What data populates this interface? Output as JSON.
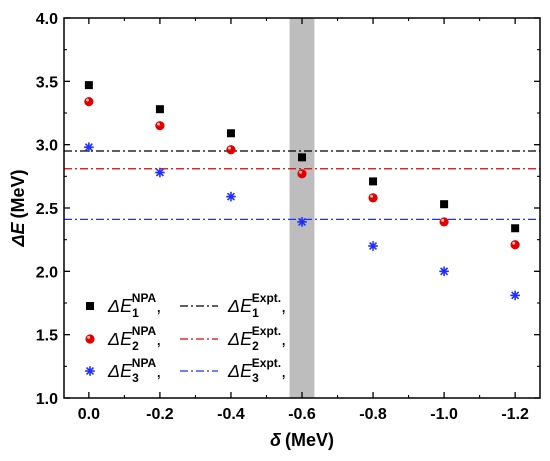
{
  "chart_data": {
    "type": "scatter",
    "xlabel": {
      "symbol": "δ",
      "unit": "(MeV)"
    },
    "ylabel": {
      "symbol": "ΔE",
      "unit": "(MeV)"
    },
    "xlim": [
      0.07,
      -1.27
    ],
    "ylim": [
      1.0,
      4.0
    ],
    "x_ticks": [
      0.0,
      -0.2,
      -0.4,
      -0.6,
      -0.8,
      -1.0,
      -1.2
    ],
    "x_tick_labels": [
      "0.0",
      "-0.2",
      "-0.4",
      "-0.6",
      "-0.8",
      "-1.0",
      "-1.2"
    ],
    "y_ticks": [
      1.0,
      1.5,
      2.0,
      2.5,
      3.0,
      3.5,
      4.0
    ],
    "y_tick_labels": [
      "1.0",
      "1.5",
      "2.0",
      "2.5",
      "3.0",
      "3.5",
      "4.0"
    ],
    "shaded_band": {
      "x_from": -0.565,
      "x_to": -0.635,
      "color": "#bdbdbd"
    },
    "series": [
      {
        "marker": "square",
        "color": "#000000",
        "legend": {
          "prefix": "ΔE",
          "sub": "1",
          "sup": "NPA"
        },
        "x": [
          0.0,
          -0.2,
          -0.4,
          -0.6,
          -0.8,
          -1.0,
          -1.2
        ],
        "y": [
          3.47,
          3.28,
          3.09,
          2.9,
          2.71,
          2.53,
          2.34
        ]
      },
      {
        "marker": "sphere",
        "color": "#e00000",
        "legend": {
          "prefix": "ΔE",
          "sub": "2",
          "sup": "NPA"
        },
        "x": [
          0.0,
          -0.2,
          -0.4,
          -0.6,
          -0.8,
          -1.0,
          -1.2
        ],
        "y": [
          3.34,
          3.15,
          2.96,
          2.77,
          2.58,
          2.39,
          2.21
        ]
      },
      {
        "marker": "asterisk",
        "color": "#1f2fff",
        "legend": {
          "prefix": "ΔE",
          "sub": "3",
          "sup": "NPA"
        },
        "x": [
          0.0,
          -0.2,
          -0.4,
          -0.6,
          -0.8,
          -1.0,
          -1.2
        ],
        "y": [
          2.98,
          2.78,
          2.59,
          2.39,
          2.2,
          2.0,
          1.81
        ]
      }
    ],
    "reference_lines": [
      {
        "y": 2.95,
        "color": "#000000",
        "dash": "8 3 2 3",
        "legend": {
          "prefix": "ΔE",
          "sub": "1",
          "sup": "Expt."
        }
      },
      {
        "y": 2.81,
        "color": "#e00000",
        "dash": "8 3 2 3",
        "legend": {
          "prefix": "ΔE",
          "sub": "2",
          "sup": "Expt."
        }
      },
      {
        "y": 2.41,
        "color": "#1f2fff",
        "dash": "8 3 2 3",
        "legend": {
          "prefix": "ΔE",
          "sub": "3",
          "sup": "Expt."
        }
      }
    ],
    "legend_placement": "bottom-left",
    "grid": false
  }
}
